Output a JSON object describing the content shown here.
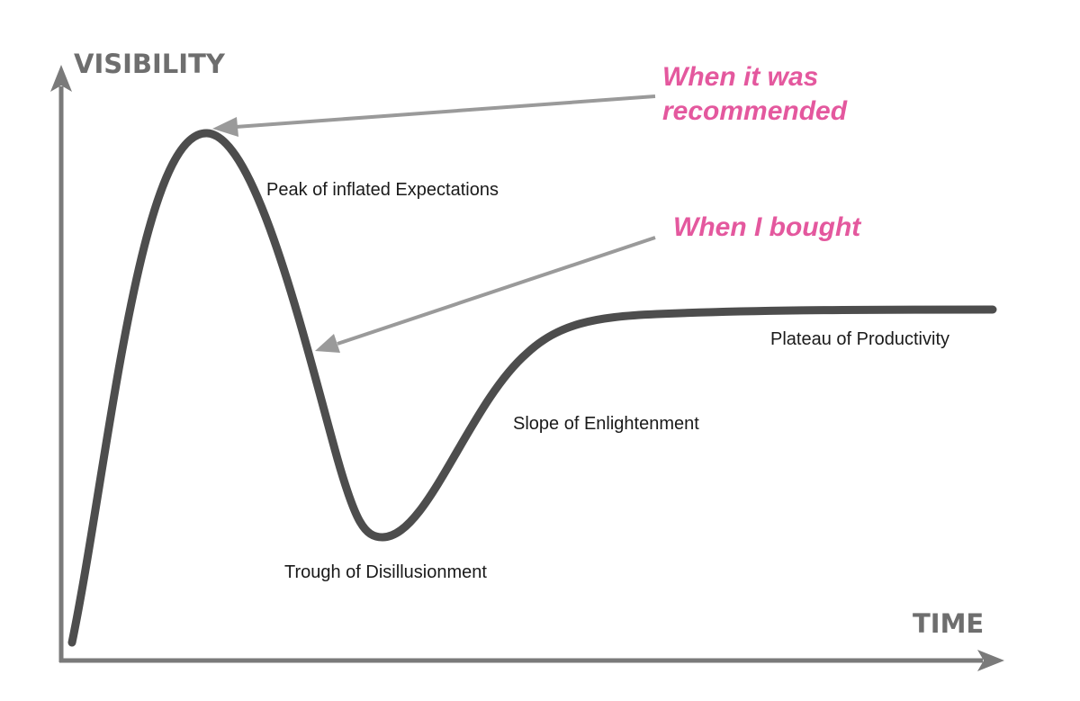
{
  "axes": {
    "y_label": "VISIBILITY",
    "x_label": "TIME"
  },
  "phases": {
    "peak": "Peak of inflated Expectations",
    "trough": "Trough of Disillusionment",
    "slope": "Slope of Enlightenment",
    "plateau": "Plateau of Productivity"
  },
  "annotations": {
    "recommended_line1": "When it was",
    "recommended_line2": "recommended",
    "bought": "When I bought"
  },
  "colors": {
    "axis": "#7a7a7a",
    "curve": "#4d4d4d",
    "arrow": "#9a9a9a",
    "annotation": "#e4589e",
    "label": "#1a1a1a"
  }
}
